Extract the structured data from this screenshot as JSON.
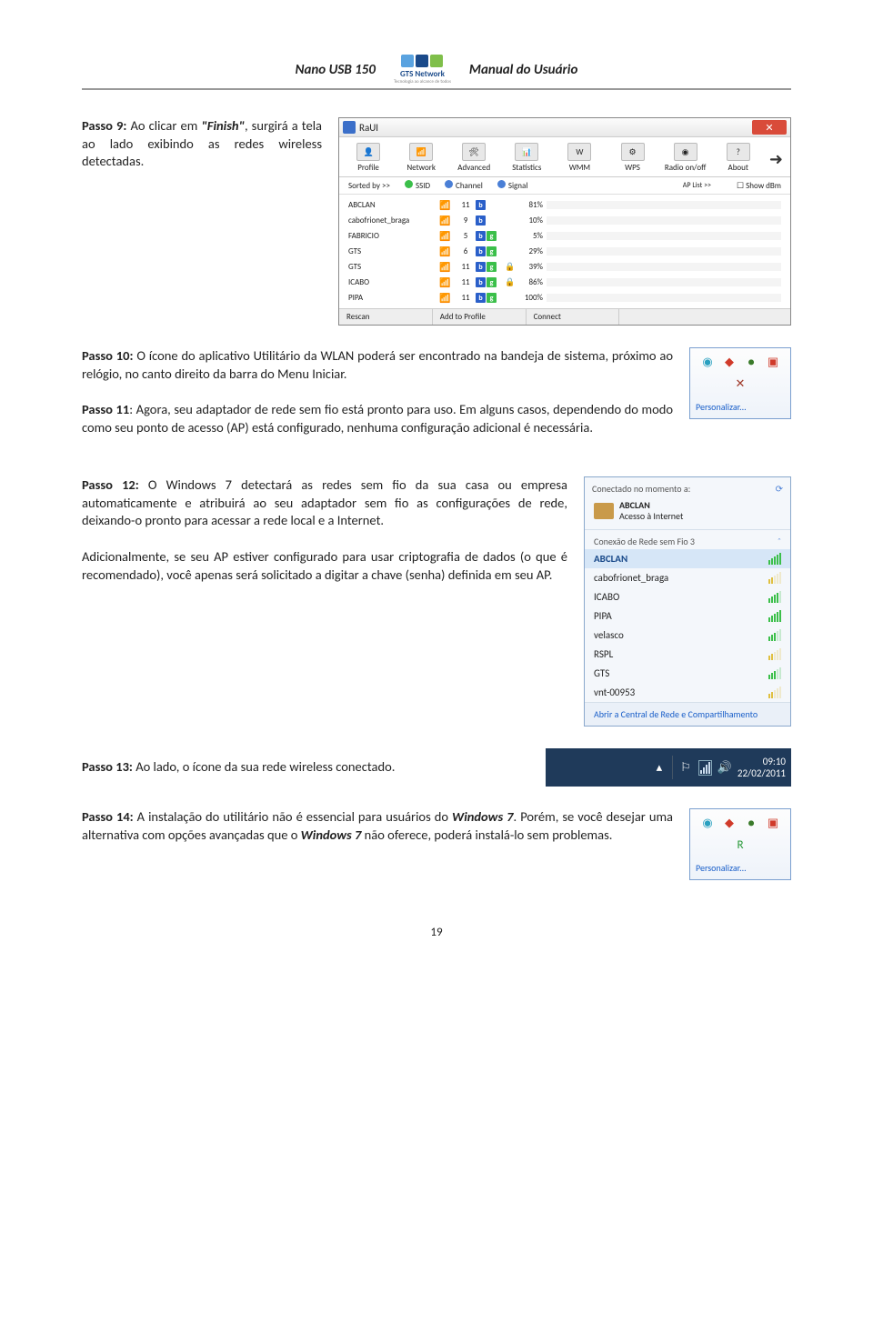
{
  "header": {
    "left": "Nano USB 150",
    "right": "Manual do Usuário",
    "logo_text": "GTS Network",
    "logo_sub": "Tecnologia ao alcance de todos",
    "logo_colors": [
      "#5aa3e0",
      "#1a4a8a",
      "#7fbf4a"
    ]
  },
  "passo9": {
    "label": "Passo 9:",
    "text": " Ao clicar em ",
    "finish": "\"Finish\"",
    "text2": ", surgirá a tela ao lado exibindo as redes wireless detectadas."
  },
  "raui": {
    "title": "RaUI",
    "tabs": [
      "Profile",
      "Network",
      "Advanced",
      "Statistics",
      "WMM",
      "WPS",
      "Radio on/off",
      "About"
    ],
    "tab_icons_bg": [
      "#e8e8e8",
      "#e8e8e8",
      "#e8e8e8",
      "#e8e8e8",
      "#e8e8e8",
      "#e8e8e8",
      "#e8e8e8",
      "#e8e8e8"
    ],
    "sort_label": "Sorted by >>",
    "sort_cols": [
      "SSID",
      "Channel",
      "Signal"
    ],
    "ap_list": "AP List >>",
    "show_dbm": "Show dBm",
    "nets": [
      {
        "name": "ABCLAN",
        "ch": "11",
        "b": true,
        "g": false,
        "lock": false,
        "pct": 81,
        "color": "#f0a030"
      },
      {
        "name": "cabofrionet_braga",
        "ch": "9",
        "b": true,
        "g": false,
        "lock": false,
        "pct": 10,
        "color": "#e03a2a"
      },
      {
        "name": "FABRICIO",
        "ch": "5",
        "b": true,
        "g": true,
        "lock": false,
        "pct": 5,
        "color": "#e03a2a"
      },
      {
        "name": "GTS",
        "ch": "6",
        "b": true,
        "g": true,
        "lock": false,
        "pct": 29,
        "color": "#f0a030"
      },
      {
        "name": "GTS",
        "ch": "11",
        "b": true,
        "g": true,
        "lock": true,
        "pct": 39,
        "color": "#f0a030"
      },
      {
        "name": "ICABO",
        "ch": "11",
        "b": true,
        "g": true,
        "lock": true,
        "pct": 86,
        "color": "#f0a030"
      },
      {
        "name": "PIPA",
        "ch": "11",
        "b": true,
        "g": true,
        "lock": false,
        "pct": 100,
        "color": "#f0a030"
      }
    ],
    "buttons": [
      "Rescan",
      "Add to Profile",
      "Connect"
    ]
  },
  "passo10": {
    "label": "Passo 10:",
    "text": " O ícone do aplicativo Utilitário da WLAN poderá ser encontrado na bandeja de sistema, próximo ao relógio, no canto direito da barra do Menu Iniciar."
  },
  "passo11": {
    "label": "Passo 11",
    "text": ": Agora, seu adaptador de rede sem fio está pronto para uso. Em alguns casos, dependendo do modo como seu ponto de acesso (AP) está configurado, nenhuma configuração adicional é necessária."
  },
  "tray1": {
    "link": "Personalizar...",
    "icons": [
      {
        "glyph": "◉",
        "color": "#2aa0c0"
      },
      {
        "glyph": "◆",
        "color": "#d03a2a"
      },
      {
        "glyph": "●",
        "color": "#3a7a2a"
      },
      {
        "glyph": "▣",
        "color": "#d03a2a"
      },
      {
        "glyph": "✕",
        "color": "#a03a2a"
      }
    ]
  },
  "passo12": {
    "label": "Passo 12:",
    "text": " O Windows 7 detectará as redes sem fio da sua casa ou empresa automaticamente e atribuirá ao seu adaptador sem fio as configurações de rede, deixando-o pronto para acessar a rede local e a Internet.",
    "text2": "Adicionalmente, se seu AP estiver configurado para usar criptografia de dados (o que é recomendado), você apenas será solicitado a digitar a chave (senha) definida em seu AP."
  },
  "wifi": {
    "head": "Conectado no momento a:",
    "conn_name": "ABCLAN",
    "conn_sub": "Acesso à Internet",
    "section": "Conexão de Rede sem Fio 3",
    "items": [
      {
        "name": "ABCLAN",
        "sel": true,
        "strength": 5,
        "green": true
      },
      {
        "name": "cabofrionet_braga",
        "sel": false,
        "strength": 2,
        "green": false
      },
      {
        "name": "ICABO",
        "sel": false,
        "strength": 4,
        "green": true
      },
      {
        "name": "PIPA",
        "sel": false,
        "strength": 5,
        "green": true
      },
      {
        "name": "velasco",
        "sel": false,
        "strength": 3,
        "green": true
      },
      {
        "name": "RSPL",
        "sel": false,
        "strength": 2,
        "green": false
      },
      {
        "name": "GTS",
        "sel": false,
        "strength": 3,
        "green": true
      },
      {
        "name": "vnt-00953",
        "sel": false,
        "strength": 2,
        "green": false
      }
    ],
    "footer": "Abrir a Central de Rede e Compartilhamento"
  },
  "passo13": {
    "label": "Passo 13:",
    "text": " Ao lado, o ícone da sua rede wireless conectado."
  },
  "taskbar": {
    "time": "09:10",
    "date": "22/02/2011"
  },
  "passo14": {
    "label": "Passo 14:",
    "text1": " A instalação do utilitário não é essencial para usuários do ",
    "win7a": "Windows 7",
    "text2": ". Porém, se você desejar uma alternativa com opções avançadas que o ",
    "win7b": "Windows 7",
    "text3": " não oferece, poderá instalá-lo sem problemas."
  },
  "tray2": {
    "link": "Personalizar...",
    "icons": [
      {
        "glyph": "◉",
        "color": "#2aa0c0"
      },
      {
        "glyph": "◆",
        "color": "#d03a2a"
      },
      {
        "glyph": "●",
        "color": "#3a7a2a"
      },
      {
        "glyph": "▣",
        "color": "#d03a2a"
      },
      {
        "glyph": "R",
        "color": "#2a9a3a"
      }
    ]
  },
  "page_number": "19"
}
